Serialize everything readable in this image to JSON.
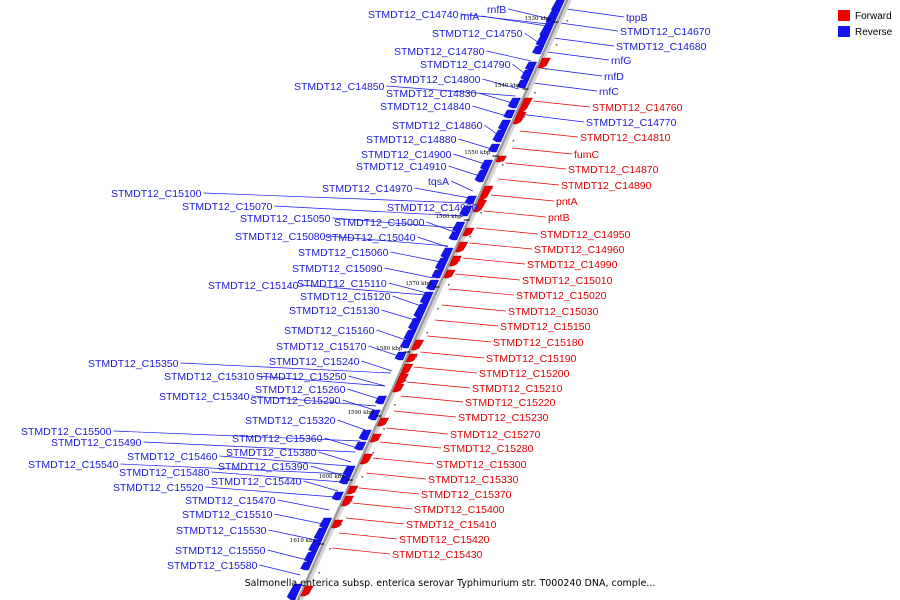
{
  "caption": "Salmonella enterica subsp. enterica serovar Typhimurium str. T000240 DNA, comple...",
  "legend": [
    {
      "label": "Forward",
      "color": "#ee0000"
    },
    {
      "label": "Reverse",
      "color": "#1414f0"
    }
  ],
  "colors": {
    "forward": "#ee0000",
    "reverse": "#1414f0",
    "backbone": "#9a9a9a"
  },
  "kbp_marks": [
    "1530 kbp",
    "1540 kbp",
    "1550 kbp",
    "1560 kbp",
    "1570 kbp",
    "1580 kbp",
    "1590 kbp",
    "1600 kbp",
    "1610 kbp"
  ],
  "reverse_genes": [
    "STMDT12_C14740",
    "rnfA",
    "rnfB",
    "STMDT12_C14750",
    "STMDT12_C14780",
    "STMDT12_C14790",
    "STMDT12_C14800",
    "STMDT12_C14850",
    "STMDT12_C14830",
    "STMDT12_C14840",
    "STMDT12_C14860",
    "STMDT12_C14880",
    "STMDT12_C14900",
    "STMDT12_C14910",
    "tqsA",
    "STMDT12_C14970",
    "STMDT12_C15100",
    "STMDT12_C14980",
    "STMDT12_C15070",
    "STMDT12_C15050",
    "STMDT12_C15000",
    "STMDT12_C15080",
    "STMDT12_C15040",
    "STMDT12_C15060",
    "STMDT12_C15090",
    "STMDT12_C15110",
    "STMDT12_C15140",
    "STMDT12_C15120",
    "STMDT12_C15130",
    "STMDT12_C15160",
    "STMDT12_C15170",
    "STMDT12_C15350",
    "STMDT12_C15240",
    "STMDT12_C15310",
    "STMDT12_C15250",
    "STMDT12_C15260",
    "STMDT12_C15340",
    "STMDT12_C15290",
    "STMDT12_C15320",
    "STMDT12_C15500",
    "STMDT12_C15490",
    "STMDT12_C15360",
    "STMDT12_C15460",
    "STMDT12_C15380",
    "STMDT12_C15540",
    "STMDT12_C15390",
    "STMDT12_C15480",
    "STMDT12_C15440",
    "STMDT12_C15520",
    "STMDT12_C15470",
    "STMDT12_C15510",
    "STMDT12_C15530",
    "STMDT12_C15550",
    "STMDT12_C15580",
    "tppB",
    "STMDT12_C14670",
    "STMDT12_C14680",
    "rnfG",
    "rnfD",
    "rnfC",
    "STMDT12_C14770"
  ],
  "forward_genes": [
    "STMDT12_C14760",
    "STMDT12_C14810",
    "fumC",
    "STMDT12_C14870",
    "STMDT12_C14890",
    "pntA",
    "pntB",
    "STMDT12_C14950",
    "STMDT12_C14960",
    "STMDT12_C14990",
    "STMDT12_C15010",
    "STMDT12_C15020",
    "STMDT12_C15030",
    "STMDT12_C15150",
    "STMDT12_C15180",
    "STMDT12_C15190",
    "STMDT12_C15200",
    "STMDT12_C15210",
    "STMDT12_C15220",
    "STMDT12_C15230",
    "STMDT12_C15270",
    "STMDT12_C15280",
    "STMDT12_C15300",
    "STMDT12_C15330",
    "STMDT12_C15370",
    "STMDT12_C15400",
    "STMDT12_C15410",
    "STMDT12_C15420",
    "STMDT12_C15430"
  ]
}
